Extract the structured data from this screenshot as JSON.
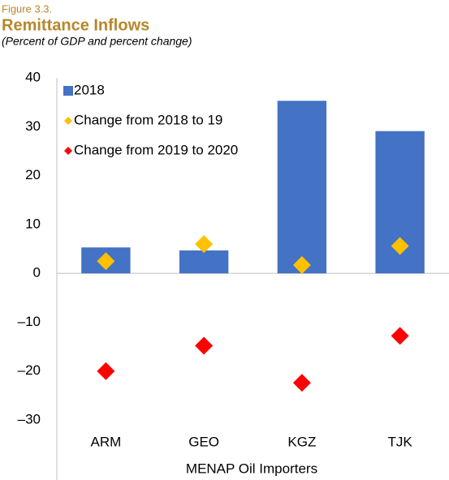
{
  "chart_data": {
    "type": "bar",
    "figure_label": "Figure 3.3.",
    "title": "Remittance Inflows",
    "subtitle": "(Percent of GDP and percent change)",
    "categories": [
      "ARM",
      "GEO",
      "KGZ",
      "TJK"
    ],
    "category_group": "MENAP Oil Importers",
    "series": [
      {
        "name": "2018",
        "type": "bar",
        "color": "#4472c4",
        "values": [
          5.3,
          4.7,
          35.3,
          29.1
        ]
      },
      {
        "name": "Change from 2018 to 19",
        "type": "scatter",
        "color": "#ffc000",
        "values": [
          2.5,
          6.0,
          1.7,
          5.6
        ]
      },
      {
        "name": "Change from 2019 to 2020",
        "type": "scatter",
        "color": "#ff0000",
        "values": [
          -20.0,
          -14.8,
          -22.4,
          -12.8
        ]
      }
    ],
    "ylim": [
      -30,
      40
    ],
    "yticks": [
      {
        "value": -30,
        "label": "–30"
      },
      {
        "value": -20,
        "label": "–20"
      },
      {
        "value": -10,
        "label": "–10"
      },
      0,
      10,
      20,
      30,
      40
    ],
    "grid": false,
    "legend": "upper left"
  }
}
